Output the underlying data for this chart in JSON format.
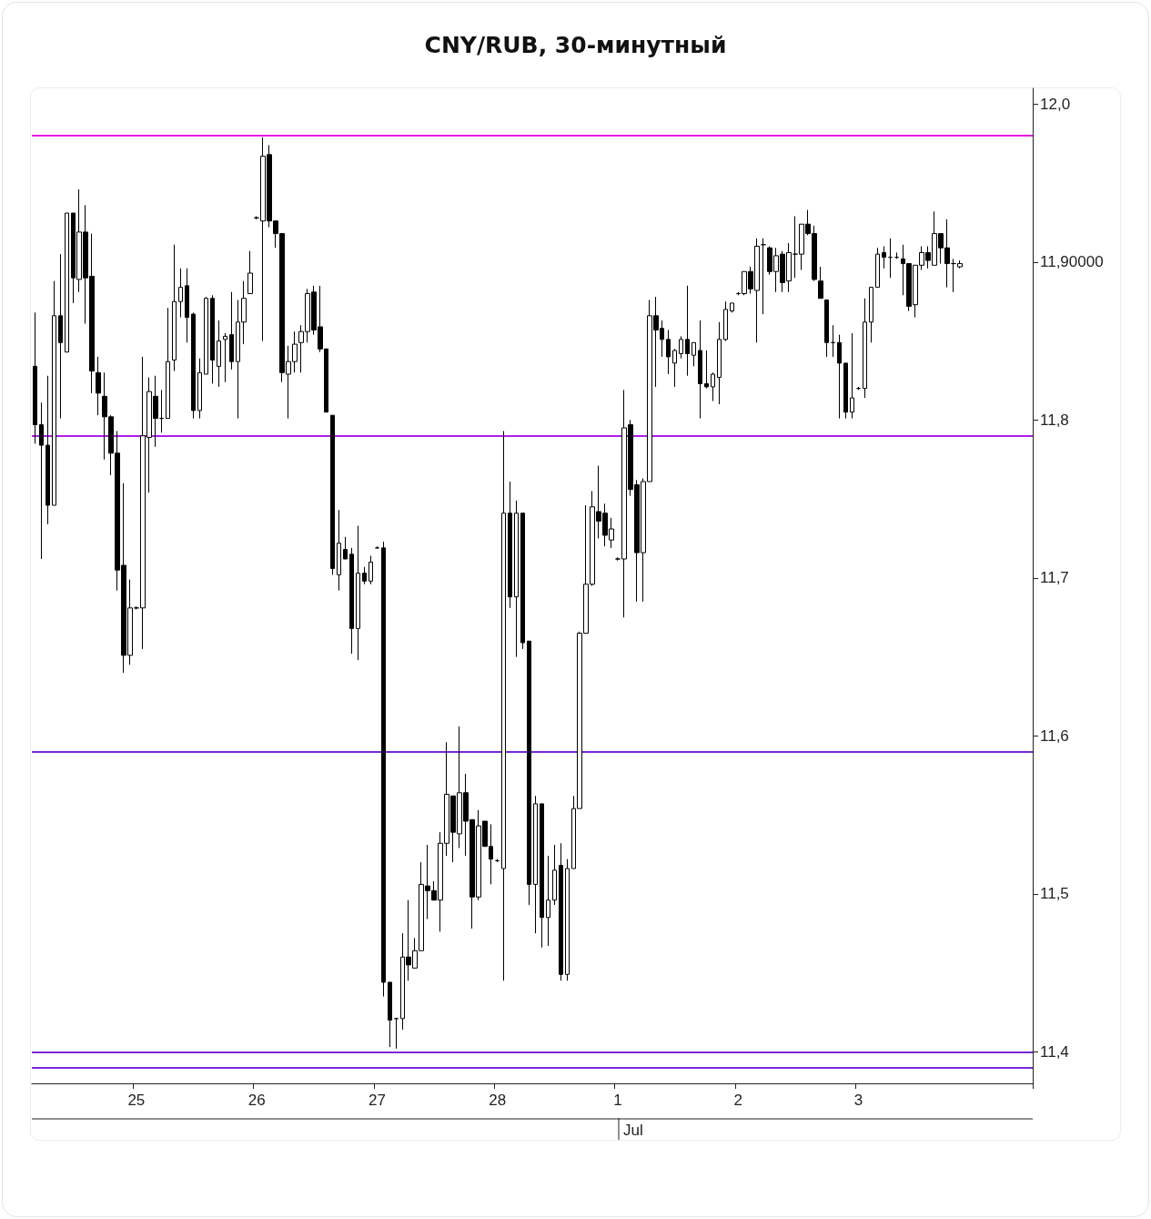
{
  "chart_data": {
    "type": "candlestick",
    "title": "CNY/RUB, 30-минутный",
    "categories": [
      null,
      null,
      null,
      null,
      null,
      null,
      null,
      null,
      null,
      null,
      null,
      null,
      null,
      null,
      null,
      null,
      "25",
      null,
      null,
      null,
      null,
      null,
      null,
      null,
      null,
      null,
      null,
      null,
      null,
      null,
      null,
      null,
      null,
      null,
      null,
      "26",
      null,
      null,
      null,
      null,
      null,
      null,
      null,
      null,
      null,
      null,
      null,
      null,
      null,
      null,
      null,
      null,
      null,
      null,
      "27",
      null,
      null,
      null,
      null,
      null,
      null,
      null,
      null,
      null,
      null,
      null,
      null,
      null,
      null,
      null,
      null,
      null,
      null,
      "28",
      null,
      null,
      null,
      null,
      null,
      null,
      null,
      null,
      null,
      null,
      null,
      null,
      null,
      null,
      null,
      null,
      null,
      null,
      "1",
      null,
      null,
      null,
      null,
      null,
      null,
      null,
      null,
      null,
      null,
      null,
      null,
      null,
      null,
      null,
      null,
      null,
      null,
      "2",
      null,
      null,
      null,
      null,
      null,
      null,
      null,
      null,
      null,
      null,
      null,
      null,
      null,
      null,
      null,
      null,
      null,
      null,
      "3",
      null,
      null,
      null,
      null,
      null,
      null,
      null,
      null,
      null,
      null,
      null,
      null,
      null,
      null,
      null,
      null,
      null,
      null,
      null,
      null,
      null,
      null,
      null,
      null,
      null,
      null,
      null
    ],
    "ohlc": [
      [
        11.834,
        11.868,
        11.785,
        11.797
      ],
      [
        11.797,
        11.811,
        11.712,
        11.784
      ],
      [
        11.784,
        11.828,
        11.734,
        11.746
      ],
      [
        11.746,
        11.888,
        11.746,
        11.866
      ],
      [
        11.866,
        11.905,
        11.801,
        11.849
      ],
      [
        11.843,
        11.931,
        11.843,
        11.931
      ],
      [
        11.931,
        11.931,
        11.874,
        11.89
      ],
      [
        11.889,
        11.946,
        11.881,
        11.919
      ],
      [
        11.919,
        11.936,
        11.861,
        11.89
      ],
      [
        11.891,
        11.918,
        11.817,
        11.831
      ],
      [
        11.83,
        11.84,
        11.803,
        11.817
      ],
      [
        11.815,
        11.83,
        11.775,
        11.802
      ],
      [
        11.802,
        11.803,
        11.765,
        11.779
      ],
      [
        11.779,
        11.793,
        11.692,
        11.705
      ],
      [
        11.708,
        11.76,
        11.64,
        11.651
      ],
      [
        11.651,
        11.699,
        11.645,
        11.681
      ],
      [
        11.681,
        11.682,
        11.68,
        11.681
      ],
      [
        11.681,
        11.84,
        11.655,
        11.79
      ],
      [
        11.789,
        11.827,
        11.754,
        11.818
      ],
      [
        11.815,
        11.828,
        11.783,
        11.801
      ],
      [
        11.801,
        11.819,
        11.792,
        11.801
      ],
      [
        11.801,
        11.871,
        11.801,
        11.837
      ],
      [
        11.838,
        11.911,
        11.831,
        11.875
      ],
      [
        11.875,
        11.896,
        11.865,
        11.884
      ],
      [
        11.885,
        11.896,
        11.849,
        11.865
      ],
      [
        11.867,
        11.868,
        11.801,
        11.806
      ],
      [
        11.806,
        11.839,
        11.801,
        11.83
      ],
      [
        11.829,
        11.878,
        11.829,
        11.877
      ],
      [
        11.877,
        11.879,
        11.823,
        11.838
      ],
      [
        11.834,
        11.863,
        11.821,
        11.85
      ],
      [
        11.851,
        11.855,
        11.824,
        11.853
      ],
      [
        11.854,
        11.881,
        11.832,
        11.837
      ],
      [
        11.837,
        11.876,
        11.801,
        11.862
      ],
      [
        11.862,
        11.888,
        11.848,
        11.877
      ],
      [
        11.88,
        11.907,
        11.88,
        11.893
      ],
      [
        11.928,
        11.929,
        11.927,
        11.928
      ],
      [
        11.926,
        11.979,
        11.85,
        11.967
      ],
      [
        11.968,
        11.974,
        11.922,
        11.926
      ],
      [
        11.926,
        11.926,
        11.909,
        11.918
      ],
      [
        11.918,
        11.918,
        11.824,
        11.83
      ],
      [
        11.829,
        11.847,
        11.801,
        11.837
      ],
      [
        11.837,
        11.856,
        11.83,
        11.848
      ],
      [
        11.849,
        11.86,
        11.83,
        11.856
      ],
      [
        11.856,
        11.883,
        11.849,
        11.88
      ],
      [
        11.881,
        11.885,
        11.854,
        11.857
      ],
      [
        11.859,
        11.885,
        11.843,
        11.845
      ],
      [
        11.845,
        11.845,
        11.805,
        11.805
      ],
      [
        11.803,
        11.803,
        11.702,
        11.706
      ],
      [
        11.702,
        11.743,
        11.692,
        11.722
      ],
      [
        11.718,
        11.726,
        11.712,
        11.712
      ],
      [
        11.715,
        11.719,
        11.652,
        11.668
      ],
      [
        11.668,
        11.733,
        11.648,
        11.703
      ],
      [
        11.703,
        11.707,
        11.696,
        11.698
      ],
      [
        11.698,
        11.714,
        11.696,
        11.71
      ],
      [
        11.719,
        11.72,
        11.719,
        11.719
      ],
      [
        11.719,
        11.723,
        11.435,
        11.444
      ],
      [
        11.444,
        11.444,
        11.403,
        11.42
      ],
      [
        11.421,
        11.421,
        11.402,
        11.421
      ],
      [
        11.421,
        11.475,
        11.414,
        11.46
      ],
      [
        11.46,
        11.496,
        11.445,
        11.455
      ],
      [
        11.453,
        11.472,
        11.453,
        11.464
      ],
      [
        11.464,
        11.52,
        11.464,
        11.506
      ],
      [
        11.505,
        11.531,
        11.484,
        11.502
      ],
      [
        11.502,
        11.508,
        11.496,
        11.496
      ],
      [
        11.496,
        11.539,
        11.476,
        11.532
      ],
      [
        11.532,
        11.596,
        11.524,
        11.563
      ],
      [
        11.562,
        11.562,
        11.52,
        11.539
      ],
      [
        11.538,
        11.606,
        11.529,
        11.564
      ],
      [
        11.564,
        11.576,
        11.524,
        11.546
      ],
      [
        11.547,
        11.547,
        11.478,
        11.498
      ],
      [
        11.498,
        11.553,
        11.496,
        11.543
      ],
      [
        11.546,
        11.546,
        11.53,
        11.53
      ],
      [
        11.53,
        11.544,
        11.506,
        11.522
      ],
      [
        11.521,
        11.522,
        11.52,
        11.521
      ],
      [
        11.516,
        11.793,
        11.445,
        11.741
      ],
      [
        11.741,
        11.761,
        11.681,
        11.688
      ],
      [
        11.688,
        11.749,
        11.65,
        11.741
      ],
      [
        11.741,
        11.741,
        11.655,
        11.659
      ],
      [
        11.66,
        11.66,
        11.493,
        11.506
      ],
      [
        11.506,
        11.562,
        11.475,
        11.557
      ],
      [
        11.557,
        11.557,
        11.466,
        11.485
      ],
      [
        11.485,
        11.524,
        11.467,
        11.496
      ],
      [
        11.496,
        11.531,
        11.493,
        11.515
      ],
      [
        11.518,
        11.532,
        11.445,
        11.449
      ],
      [
        11.449,
        11.522,
        11.445,
        11.516
      ],
      [
        11.516,
        11.562,
        11.516,
        11.554
      ],
      [
        11.554,
        11.666,
        11.554,
        11.665
      ],
      [
        11.665,
        11.746,
        11.665,
        11.696
      ],
      [
        11.696,
        11.755,
        11.695,
        11.745
      ],
      [
        11.742,
        11.771,
        11.725,
        11.736
      ],
      [
        11.741,
        11.747,
        11.72,
        11.727
      ],
      [
        11.724,
        11.738,
        11.719,
        11.731
      ],
      [
        11.712,
        11.713,
        11.711,
        11.712
      ],
      [
        11.712,
        11.819,
        11.675,
        11.795
      ],
      [
        11.797,
        11.8,
        11.752,
        11.756
      ],
      [
        11.759,
        11.762,
        11.685,
        11.716
      ],
      [
        11.716,
        11.763,
        11.685,
        11.761
      ],
      [
        11.761,
        11.876,
        11.761,
        11.866
      ],
      [
        11.866,
        11.878,
        11.821,
        11.857
      ],
      [
        11.858,
        11.863,
        11.84,
        11.851
      ],
      [
        11.851,
        11.857,
        11.829,
        11.84
      ],
      [
        11.836,
        11.845,
        11.821,
        11.844
      ],
      [
        11.842,
        11.853,
        11.839,
        11.851
      ],
      [
        11.851,
        11.885,
        11.828,
        11.842
      ],
      [
        11.841,
        11.849,
        11.834,
        11.849
      ],
      [
        11.844,
        11.863,
        11.801,
        11.823
      ],
      [
        11.823,
        11.844,
        11.82,
        11.821
      ],
      [
        11.821,
        11.83,
        11.812,
        11.829
      ],
      [
        11.827,
        11.862,
        11.81,
        11.851
      ],
      [
        11.851,
        11.875,
        11.85,
        11.87
      ],
      [
        11.869,
        11.874,
        11.868,
        11.874
      ],
      [
        11.88,
        11.881,
        11.879,
        11.88
      ],
      [
        11.88,
        11.894,
        11.879,
        11.894
      ],
      [
        11.894,
        11.897,
        11.88,
        11.883
      ],
      [
        11.882,
        11.915,
        11.849,
        11.91
      ],
      [
        11.911,
        11.915,
        11.867,
        11.911
      ],
      [
        11.909,
        11.91,
        11.892,
        11.894
      ],
      [
        11.894,
        11.909,
        11.881,
        11.904
      ],
      [
        11.905,
        11.907,
        11.881,
        11.887
      ],
      [
        11.888,
        11.912,
        11.881,
        11.906
      ],
      [
        11.905,
        11.929,
        11.89,
        11.905
      ],
      [
        11.905,
        11.924,
        11.895,
        11.924
      ],
      [
        11.924,
        11.933,
        11.917,
        11.918
      ],
      [
        11.918,
        11.923,
        11.888,
        11.889
      ],
      [
        11.888,
        11.897,
        11.877,
        11.877
      ],
      [
        11.876,
        11.876,
        11.84,
        11.849
      ],
      [
        11.849,
        11.86,
        11.84,
        11.849
      ],
      [
        11.849,
        11.854,
        11.801,
        11.836
      ],
      [
        11.836,
        11.836,
        11.801,
        11.805
      ],
      [
        11.805,
        11.855,
        11.801,
        11.814
      ],
      [
        11.82,
        11.821,
        11.819,
        11.82
      ],
      [
        11.82,
        11.877,
        11.814,
        11.862
      ],
      [
        11.862,
        11.884,
        11.849,
        11.884
      ],
      [
        11.884,
        11.909,
        11.884,
        11.905
      ],
      [
        11.906,
        11.91,
        11.896,
        11.903
      ],
      [
        11.903,
        11.915,
        11.89,
        11.903
      ],
      [
        11.903,
        11.906,
        11.902,
        11.903
      ],
      [
        11.902,
        11.911,
        11.879,
        11.899
      ],
      [
        11.899,
        11.899,
        11.869,
        11.872
      ],
      [
        11.873,
        11.898,
        11.865,
        11.898
      ],
      [
        11.898,
        11.91,
        11.895,
        11.906
      ],
      [
        11.906,
        11.91,
        11.896,
        11.901
      ],
      [
        11.898,
        11.932,
        11.898,
        11.918
      ],
      [
        11.918,
        11.918,
        11.899,
        11.909
      ],
      [
        11.909,
        11.927,
        11.884,
        11.899
      ],
      [
        11.899,
        11.902,
        11.881,
        11.899
      ],
      [
        11.897,
        11.901,
        11.896,
        11.899
      ],
      null,
      null,
      null,
      null,
      null,
      null,
      null,
      null,
      null,
      null,
      null
    ],
    "ylim": [
      11.38,
      12.01
    ],
    "yticks": [
      {
        "value": 11.4,
        "label": "11,4"
      },
      {
        "value": 11.5,
        "label": "11,5"
      },
      {
        "value": 11.6,
        "label": "11,6"
      },
      {
        "value": 11.7,
        "label": "11,7"
      },
      {
        "value": 11.8,
        "label": "11,8"
      },
      {
        "value": 11.9,
        "label": "11,90000"
      },
      {
        "value": 12.0,
        "label": "12,0"
      }
    ],
    "ref_lines": [
      {
        "axis": "y",
        "value": 11.979,
        "color": "#e81ce8"
      },
      {
        "axis": "y",
        "value": 11.79,
        "color": "#b01ee8"
      },
      {
        "axis": "y",
        "value": 11.588,
        "color": "#7a28d8"
      },
      {
        "axis": "y",
        "value": 11.4,
        "color": "#7a28d8"
      },
      {
        "axis": "y",
        "value": 11.39,
        "color": "#7a28d8"
      }
    ],
    "annotations": [
      "Jul"
    ]
  }
}
